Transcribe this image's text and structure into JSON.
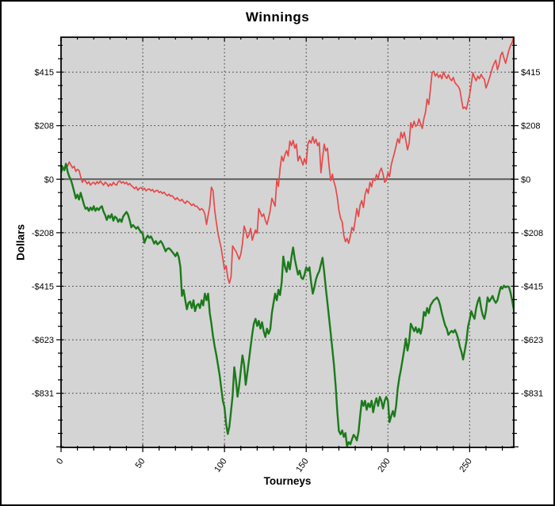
{
  "chart_data": {
    "type": "line",
    "title": "Winnings",
    "xlabel": "Tourneys",
    "ylabel": "Dollars",
    "xlim": [
      0,
      277
    ],
    "ylim": [
      -1041,
      551
    ],
    "grid": {
      "style": "dotted",
      "color": "#333333",
      "on": true
    },
    "legend": "none",
    "plot_bg": "#d4d4d4",
    "frame_color": "#1a1a1a",
    "zero_line_color": "#5d5d5d",
    "x_ticks": [
      {
        "value": 0,
        "label": "0"
      },
      {
        "value": 50,
        "label": "50"
      },
      {
        "value": 100,
        "label": "100"
      },
      {
        "value": 150,
        "label": "150"
      },
      {
        "value": 200,
        "label": "200"
      },
      {
        "value": 250,
        "label": "250"
      }
    ],
    "x_minor_step": 10,
    "y_ticks": [
      {
        "value": 415.5,
        "label": "$415"
      },
      {
        "value": 207.75,
        "label": "$208"
      },
      {
        "value": 0,
        "label": "$0"
      },
      {
        "value": -207.75,
        "label": "-$208"
      },
      {
        "value": -415.5,
        "label": "-$415"
      },
      {
        "value": -623.25,
        "label": "-$623"
      },
      {
        "value": -831,
        "label": "-$831"
      }
    ],
    "y_minor_step": 51.9375,
    "y_major_every": 4,
    "series": [
      {
        "name": "red-line",
        "color": "#e64949",
        "width": 1.7,
        "x_start": 0,
        "x_step": 1,
        "values": [
          25,
          47,
          38,
          60,
          50,
          67,
          55,
          44,
          50,
          30,
          38,
          34,
          10,
          -12,
          -2,
          -8,
          -18,
          -10,
          -23,
          -15,
          -12,
          -20,
          -10,
          -17,
          -7,
          -15,
          -23,
          -12,
          -17,
          -28,
          -18,
          -25,
          -12,
          -20,
          -23,
          -10,
          -7,
          -15,
          -10,
          -18,
          -12,
          -22,
          -17,
          -25,
          -30,
          -37,
          -30,
          -43,
          -35,
          -33,
          -40,
          -35,
          -45,
          -40,
          -38,
          -45,
          -40,
          -50,
          -45,
          -43,
          -52,
          -48,
          -56,
          -50,
          -58,
          -64,
          -58,
          -66,
          -64,
          -72,
          -79,
          -72,
          -80,
          -84,
          -78,
          -88,
          -94,
          -85,
          -89,
          -95,
          -102,
          -96,
          -105,
          -105,
          -112,
          -120,
          -114,
          -120,
          -135,
          -176,
          -140,
          -105,
          -31,
          -45,
          -120,
          -166,
          -210,
          -240,
          -268,
          -310,
          -351,
          -336,
          -382,
          -404,
          -380,
          -259,
          -270,
          -280,
          -295,
          -311,
          -290,
          -250,
          -182,
          -200,
          -228,
          -215,
          -191,
          -237,
          -215,
          -197,
          -210,
          -114,
          -130,
          -145,
          -135,
          -160,
          -176,
          -150,
          -120,
          -74,
          -90,
          -105,
          -3,
          -28,
          40,
          89,
          70,
          95,
          111,
          90,
          148,
          130,
          151,
          120,
          136,
          71,
          90,
          75,
          55,
          80,
          60,
          136,
          151,
          140,
          165,
          140,
          155,
          130,
          142,
          25,
          80,
          136,
          110,
          120,
          49,
          -6,
          20,
          -10,
          -33,
          -70,
          -120,
          -151,
          -166,
          -218,
          -243,
          -230,
          -249,
          -220,
          -187,
          -200,
          -160,
          -114,
          -145,
          -100,
          -83,
          -110,
          -60,
          -37,
          -55,
          -12,
          -30,
          3,
          -6,
          18,
          3,
          30,
          43,
          20,
          -12,
          -5,
          25,
          10,
          55,
          80,
          102,
          130,
          157,
          140,
          182,
          160,
          182,
          150,
          114,
          140,
          219,
          200,
          225,
          205,
          210,
          234,
          215,
          197,
          234,
          260,
          311,
          290,
          350,
          413,
          419,
          400,
          410,
          395,
          405,
          390,
          416,
          400,
          391,
          405,
          390,
          382,
          395,
          375,
          367,
          360,
          348,
          310,
          274,
          280,
          271,
          300,
          327,
          370,
          413,
          395,
          382,
          400,
          390,
          407,
          395,
          388,
          354,
          370,
          390,
          410,
          434,
          450,
          462,
          425,
          445,
          481,
          493,
          470,
          450,
          475,
          500,
          518,
          530,
          555
        ]
      },
      {
        "name": "green-line",
        "color": "#1b7a1b",
        "width": 2.4,
        "x_start": 0,
        "x_step": 1,
        "values": [
          25,
          47,
          35,
          60,
          30,
          10,
          -2,
          -23,
          -48,
          -74,
          -60,
          -79,
          -53,
          -75,
          -99,
          -115,
          -110,
          -123,
          -110,
          -120,
          -105,
          -123,
          -112,
          -120,
          -110,
          -105,
          -126,
          -140,
          -158,
          -141,
          -150,
          -136,
          -161,
          -145,
          -151,
          -166,
          -155,
          -166,
          -145,
          -136,
          -127,
          -138,
          -160,
          -187,
          -178,
          -185,
          -192,
          -185,
          -197,
          -205,
          -213,
          -247,
          -230,
          -219,
          -228,
          -222,
          -235,
          -250,
          -240,
          -253,
          -247,
          -240,
          -250,
          -265,
          -280,
          -270,
          -268,
          -274,
          -282,
          -290,
          -299,
          -285,
          -302,
          -340,
          -453,
          -430,
          -470,
          -505,
          -480,
          -475,
          -500,
          -470,
          -512,
          -490,
          -484,
          -500,
          -470,
          -490,
          -444,
          -470,
          -444,
          -520,
          -560,
          -610,
          -650,
          -681,
          -720,
          -760,
          -810,
          -860,
          -885,
          -950,
          -989,
          -960,
          -900,
          -840,
          -730,
          -780,
          -844,
          -800,
          -740,
          -684,
          -720,
          -798,
          -750,
          -700,
          -650,
          -600,
          -560,
          -542,
          -570,
          -550,
          -580,
          -555,
          -590,
          -613,
          -580,
          -600,
          -582,
          -520,
          -480,
          -444,
          -470,
          -429,
          -450,
          -400,
          -300,
          -340,
          -360,
          -321,
          -350,
          -300,
          -265,
          -310,
          -340,
          -370,
          -355,
          -382,
          -388,
          -370,
          -342,
          -355,
          -342,
          -400,
          -444,
          -420,
          -388,
          -370,
          -357,
          -330,
          -305,
          -360,
          -422,
          -480,
          -540,
          -598,
          -660,
          -720,
          -800,
          -900,
          -977,
          -990,
          -975,
          -1000,
          -985,
          -1038,
          -1020,
          -1029,
          -1010,
          -992,
          -1000,
          -1014,
          -980,
          -920,
          -860,
          -880,
          -860,
          -895,
          -870,
          -885,
          -860,
          -905,
          -870,
          -850,
          -880,
          -845,
          -860,
          -890,
          -860,
          -845,
          -860,
          -943,
          -920,
          -900,
          -921,
          -880,
          -813,
          -770,
          -736,
          -700,
          -660,
          -619,
          -665,
          -630,
          -561,
          -575,
          -590,
          -575,
          -595,
          -580,
          -600,
          -573,
          -515,
          -530,
          -500,
          -520,
          -490,
          -480,
          -470,
          -465,
          -459,
          -470,
          -490,
          -520,
          -545,
          -567,
          -580,
          -604,
          -595,
          -589,
          -595,
          -585,
          -600,
          -620,
          -650,
          -670,
          -700,
          -665,
          -630,
          -573,
          -546,
          -512,
          -530,
          -542,
          -500,
          -475,
          -459,
          -500,
          -527,
          -542,
          -510,
          -459,
          -475,
          -465,
          -453,
          -470,
          -480,
          -470,
          -444,
          -419,
          -425,
          -413,
          -420,
          -416,
          -418,
          -440,
          -470,
          -505
        ]
      }
    ]
  }
}
